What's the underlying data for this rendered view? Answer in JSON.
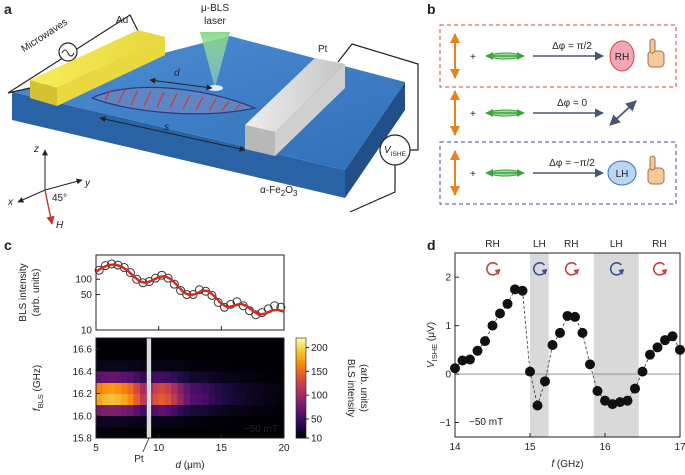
{
  "figure": {
    "a": {
      "label": "a",
      "microwaves": "Microwaves",
      "au": "Au",
      "laser": [
        "μ-BLS",
        "laser"
      ],
      "pt": "Pt",
      "d": "d",
      "s": "s",
      "v_ishe": {
        "main": "V",
        "sub": "ISHE"
      },
      "z": "z",
      "y": "y",
      "x": "x",
      "angle": "45°",
      "h": "H",
      "material": [
        "α-Fe",
        "2",
        "O",
        "3"
      ]
    },
    "b": {
      "label": "b",
      "rows": [
        {
          "plus": "+",
          "phase": "Δφ = π/2",
          "result": "RH"
        },
        {
          "plus": "+",
          "phase": "Δφ = 0"
        },
        {
          "plus": "+",
          "phase": "Δφ = −π/2",
          "result": "LH"
        }
      ]
    },
    "c": {
      "label": "c"
    },
    "d": {
      "label": "d"
    }
  },
  "chart_data": [
    {
      "type": "line",
      "yscale": "log",
      "xlim": [
        5,
        20
      ],
      "ylim": [
        10,
        300
      ],
      "xticks": [
        5,
        10,
        15,
        20
      ],
      "yticks": [
        10,
        50,
        100
      ],
      "ylabel": [
        "BLS intensity",
        "(arb. units)"
      ],
      "series": [
        {
          "style": "open-circle",
          "color": "#333333",
          "x": [
            5.25,
            5.75,
            6.25,
            6.75,
            7.25,
            7.75,
            8.25,
            8.75,
            9.25,
            9.75,
            10.25,
            10.75,
            11.25,
            11.75,
            12.25,
            12.75,
            13.25,
            13.75,
            14.25,
            14.75,
            15.25,
            15.75,
            16.25,
            16.75,
            17.25,
            17.75,
            18.25,
            18.75,
            19.25,
            19.75
          ],
          "values": [
            150,
            185,
            200,
            190,
            170,
            135,
            100,
            85,
            90,
            105,
            120,
            105,
            80,
            60,
            50,
            50,
            62,
            58,
            48,
            35,
            28,
            32,
            36,
            30,
            24,
            20,
            22,
            26,
            30,
            28
          ]
        },
        {
          "style": "line",
          "color": "#d42a22",
          "x": [
            5,
            5.5,
            6,
            6.5,
            7,
            7.5,
            8,
            8.5,
            9,
            9.5,
            10,
            10.5,
            11,
            11.5,
            12,
            12.5,
            13,
            13.5,
            14,
            14.5,
            15,
            15.5,
            16,
            16.5,
            17,
            17.5,
            18,
            18.5,
            19,
            19.5,
            20
          ],
          "values": [
            140,
            170,
            190,
            195,
            180,
            150,
            115,
            90,
            85,
            95,
            110,
            115,
            100,
            75,
            55,
            48,
            52,
            60,
            58,
            45,
            33,
            28,
            30,
            33,
            30,
            24,
            20,
            21,
            24,
            25,
            23
          ]
        }
      ]
    },
    {
      "type": "heatmap",
      "colormap": "inferno",
      "clim": [
        10,
        220
      ],
      "xlim": [
        5,
        20
      ],
      "ylim": [
        15.8,
        16.7
      ],
      "x_bins": [
        5,
        5.5,
        6,
        6.5,
        7,
        7.5,
        8,
        8.5,
        9,
        9.5,
        10,
        10.5,
        11,
        11.5,
        12,
        12.5,
        13,
        13.5,
        14,
        14.5,
        15,
        15.5,
        16,
        16.5,
        17,
        17.5,
        18,
        18.5,
        19,
        19.5,
        20
      ],
      "y_bins": [
        15.8,
        15.9,
        16,
        16.1,
        16.2,
        16.3,
        16.4,
        16.5,
        16.6,
        16.7
      ],
      "values": [
        [
          11,
          11,
          11,
          11,
          11,
          11,
          11,
          10,
          10,
          11,
          11,
          11,
          10,
          10,
          10,
          10,
          10,
          10,
          10,
          10,
          10,
          10,
          10,
          10,
          10,
          10,
          10,
          10,
          10,
          10
        ],
        [
          21,
          22,
          22,
          22,
          21,
          20,
          19,
          17,
          16,
          18,
          19,
          18,
          17,
          16,
          14,
          14,
          13,
          13,
          12,
          12,
          12,
          11,
          11,
          11,
          11,
          11,
          11,
          10,
          10,
          10
        ],
        [
          80,
          84,
          86,
          84,
          80,
          75,
          66,
          54,
          47,
          62,
          66,
          62,
          54,
          45,
          38,
          32,
          30,
          29,
          25,
          23,
          21,
          19,
          18,
          17,
          16,
          14,
          14,
          13,
          13,
          12
        ],
        [
          179,
          188,
          192,
          188,
          179,
          166,
          144,
          117,
          99,
          135,
          144,
          135,
          117,
          95,
          77,
          63,
          59,
          55,
          46,
          41,
          37,
          32,
          30,
          26,
          23,
          21,
          19,
          17,
          17,
          15
        ],
        [
          162,
          170,
          174,
          170,
          162,
          150,
          130,
          106,
          90,
          122,
          130,
          122,
          106,
          86,
          70,
          58,
          54,
          50,
          42,
          38,
          34,
          30,
          28,
          24,
          22,
          20,
          18,
          16,
          16,
          15
        ],
        [
          67,
          70,
          72,
          70,
          67,
          63,
          55,
          46,
          40,
          52,
          55,
          52,
          46,
          39,
          33,
          28,
          27,
          25,
          22,
          21,
          19,
          18,
          17,
          15,
          15,
          14,
          13,
          12,
          12,
          12
        ],
        [
          20,
          20,
          20,
          20,
          20,
          19,
          18,
          16,
          15,
          17,
          18,
          17,
          16,
          15,
          14,
          13,
          13,
          13,
          12,
          12,
          12,
          11,
          11,
          11,
          11,
          11,
          11,
          10,
          10,
          10
        ],
        [
          11,
          11,
          11,
          11,
          11,
          11,
          11,
          10,
          10,
          11,
          11,
          11,
          10,
          10,
          10,
          10,
          10,
          10,
          10,
          10,
          10,
          10,
          10,
          10,
          10,
          10,
          10,
          10,
          10,
          10
        ],
        [
          10,
          10,
          10,
          10,
          10,
          10,
          10,
          10,
          10,
          10,
          10,
          10,
          10,
          10,
          10,
          10,
          10,
          10,
          10,
          10,
          10,
          10,
          10,
          10,
          10,
          10,
          10,
          10,
          10,
          10
        ]
      ],
      "xticks": [
        5,
        10,
        15,
        20
      ],
      "yticks": [
        15.8,
        {
          "value": 16,
          "label": "16.0"
        },
        16.2,
        16.4,
        16.6
      ],
      "xlabel": [
        "d",
        " (μm)"
      ],
      "ylabel": [
        "f",
        "BLS",
        " (GHz)"
      ],
      "colorbar_ticks": [
        10,
        50,
        100,
        150,
        200
      ],
      "colorbar_label": [
        "BLS intensity",
        "(arb. units)"
      ],
      "pt_slit": [
        9.05,
        9.4
      ],
      "pt_label": "Pt",
      "annotation": "−50 mT"
    },
    {
      "type": "line",
      "xlim": [
        14,
        17
      ],
      "ylim": [
        -1.3,
        2.5
      ],
      "xticks": [
        14,
        15,
        16,
        17
      ],
      "yticks": [
        {
          "value": -1,
          "label": "−1"
        },
        0,
        1,
        2
      ],
      "zero_line": true,
      "x": [
        14,
        14.1,
        14.2,
        14.3,
        14.4,
        14.5,
        14.6,
        14.7,
        14.8,
        14.9,
        15,
        15.1,
        15.2,
        15.3,
        15.4,
        15.5,
        15.6,
        15.7,
        15.8,
        15.9,
        16,
        16.1,
        16.2,
        16.3,
        16.4,
        16.5,
        16.6,
        16.7,
        16.8,
        16.9,
        17
      ],
      "series": [
        {
          "color": "#111111",
          "values": [
            0.12,
            0.28,
            0.3,
            0.48,
            0.68,
            1.0,
            1.25,
            1.45,
            1.75,
            1.72,
            0.05,
            -0.65,
            -0.15,
            0.6,
            0.85,
            1.2,
            1.18,
            0.85,
            0.2,
            -0.35,
            -0.55,
            -0.62,
            -0.58,
            -0.55,
            -0.3,
            0.05,
            0.4,
            0.55,
            0.7,
            0.78,
            0.5
          ]
        }
      ],
      "regions": [
        {
          "label": "RH",
          "x": [
            14,
            15
          ],
          "shaded": false,
          "color": "#c8413e"
        },
        {
          "label": "LH",
          "x": [
            15,
            15.25
          ],
          "shaded": true,
          "color": "#3d4d9c"
        },
        {
          "label": "RH",
          "x": [
            15.25,
            15.85
          ],
          "shaded": false,
          "color": "#c8413e"
        },
        {
          "label": "LH",
          "x": [
            15.85,
            16.45
          ],
          "shaded": true,
          "color": "#3d4d9c"
        },
        {
          "label": "RH",
          "x": [
            16.45,
            17
          ],
          "shaded": false,
          "color": "#c8413e"
        }
      ],
      "ylabel": [
        "V",
        "ISHE",
        " (μV)"
      ],
      "xlabel": [
        "f",
        " (GHz)"
      ],
      "annotation": "−50 mT"
    }
  ]
}
